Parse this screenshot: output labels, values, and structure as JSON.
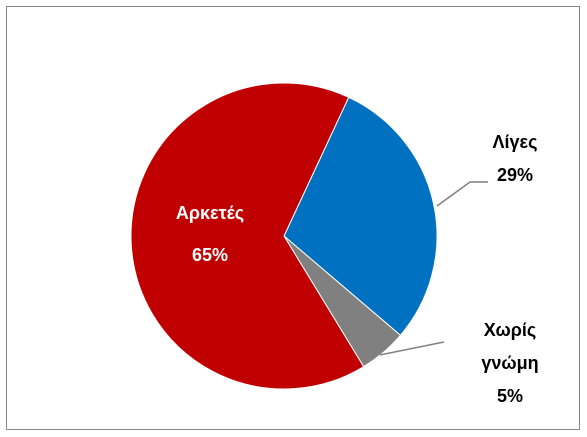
{
  "chart_data": {
    "type": "pie",
    "categories": [
      "Λίγες",
      "Χωρίς γνώμη",
      "Αρκετές"
    ],
    "values": [
      29,
      5,
      65
    ],
    "value_labels": [
      "29%",
      "5%",
      "65%"
    ],
    "colors": [
      "#0070c0",
      "#808080",
      "#c00000"
    ]
  }
}
